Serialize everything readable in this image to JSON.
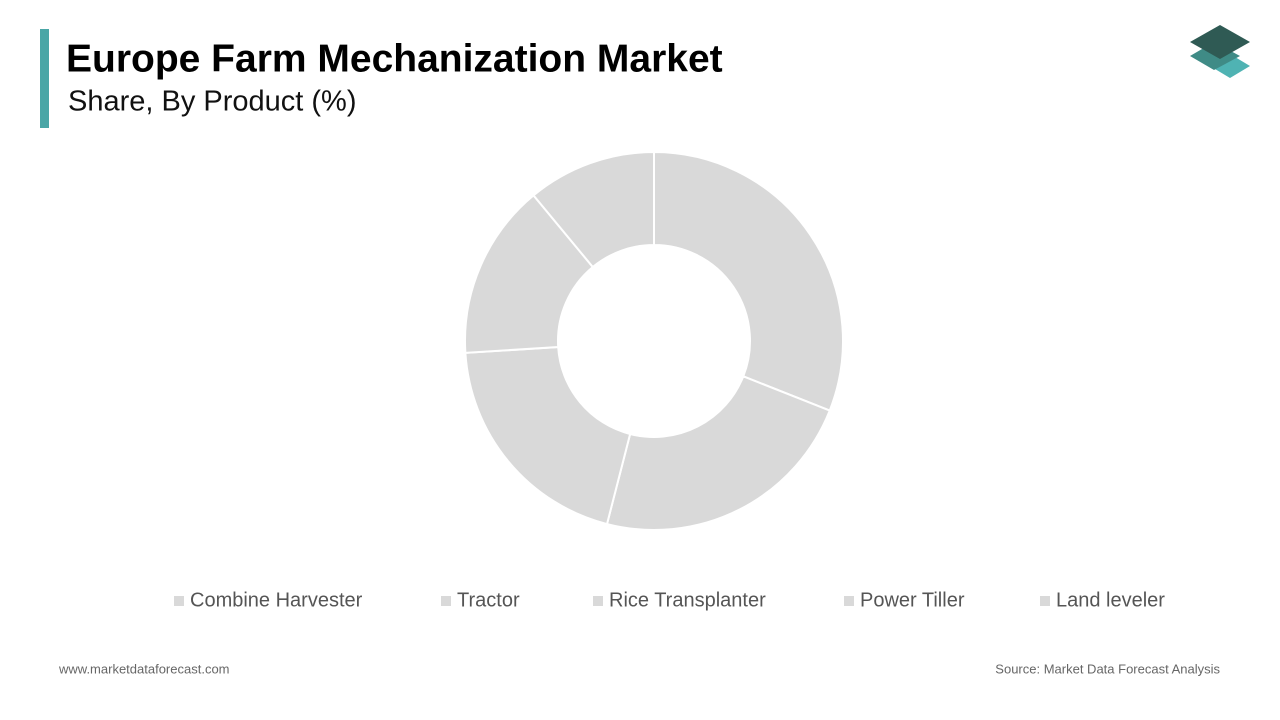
{
  "chart_data": {
    "type": "donut",
    "title": "Europe Farm Mechanization Market",
    "subtitle": "Share, By Product (%)",
    "categories": [
      "Combine Harvester",
      "Tractor",
      "Rice Transplanter",
      "Power Tiller",
      "Land leveler"
    ],
    "values": [
      31,
      23,
      20,
      15,
      11
    ],
    "colors": [
      "#d9d9d9",
      "#d9d9d9",
      "#d9d9d9",
      "#d9d9d9",
      "#d9d9d9"
    ],
    "legend": "bottom",
    "website": "www.marketdataforecast.com",
    "source": "Source: Market Data Forecast Analysis"
  }
}
